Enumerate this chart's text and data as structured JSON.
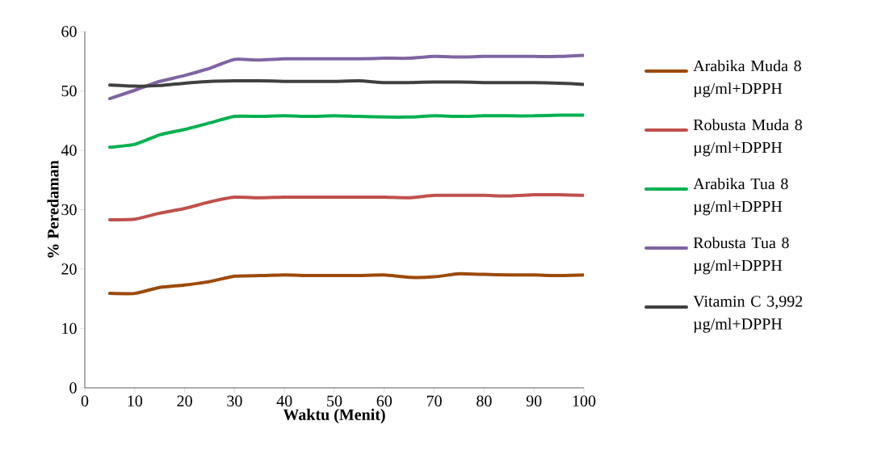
{
  "chart_data": {
    "type": "line",
    "xlabel": "Waktu (Menit)",
    "ylabel": "% Peredaman",
    "x": [
      5,
      10,
      15,
      20,
      25,
      30,
      35,
      40,
      45,
      50,
      55,
      60,
      65,
      70,
      75,
      80,
      85,
      90,
      95,
      100
    ],
    "series": [
      {
        "name": "Arabika Muda 8 µg/ml+DPPH",
        "color": "#9c4a06",
        "values": [
          15.9,
          15.9,
          16.9,
          17.3,
          17.9,
          18.8,
          18.9,
          19.0,
          18.9,
          18.9,
          18.9,
          19.0,
          18.6,
          18.7,
          19.2,
          19.1,
          19.0,
          19.0,
          18.9,
          19.0
        ]
      },
      {
        "name": "Robusta Muda 8 µg/ml+DPPH",
        "color": "#c0504d",
        "values": [
          28.3,
          28.4,
          29.4,
          30.2,
          31.3,
          32.1,
          32.0,
          32.1,
          32.1,
          32.1,
          32.1,
          32.1,
          32.0,
          32.4,
          32.4,
          32.4,
          32.3,
          32.5,
          32.5,
          32.4
        ]
      },
      {
        "name": "Arabika Tua 8 µg/ml+DPPH",
        "color": "#00b050",
        "values": [
          40.5,
          41.0,
          42.6,
          43.5,
          44.6,
          45.7,
          45.7,
          45.8,
          45.7,
          45.8,
          45.7,
          45.6,
          45.6,
          45.8,
          45.7,
          45.8,
          45.8,
          45.8,
          45.9,
          45.9
        ]
      },
      {
        "name": "Robusta Tua 8 µg/ml+DPPH",
        "color": "#8064a2",
        "values": [
          48.7,
          50.1,
          51.6,
          52.6,
          53.8,
          55.3,
          55.2,
          55.4,
          55.4,
          55.4,
          55.4,
          55.5,
          55.5,
          55.8,
          55.7,
          55.8,
          55.8,
          55.8,
          55.8,
          56.0
        ]
      },
      {
        "name": "Vitamin C 3,992 µg/ml+DPPH",
        "color": "#404040",
        "values": [
          51.0,
          50.8,
          50.9,
          51.3,
          51.6,
          51.7,
          51.7,
          51.6,
          51.6,
          51.6,
          51.7,
          51.4,
          51.4,
          51.5,
          51.5,
          51.4,
          51.4,
          51.4,
          51.3,
          51.1
        ]
      }
    ],
    "xlim": [
      0,
      100
    ],
    "xticks": [
      0,
      10,
      20,
      30,
      40,
      50,
      60,
      70,
      80,
      90,
      100
    ],
    "ylim": [
      0,
      60
    ],
    "yticks": [
      0,
      10,
      20,
      30,
      40,
      50,
      60
    ],
    "grid": false,
    "legend": "right",
    "marker": "none",
    "line_style": "solid"
  }
}
